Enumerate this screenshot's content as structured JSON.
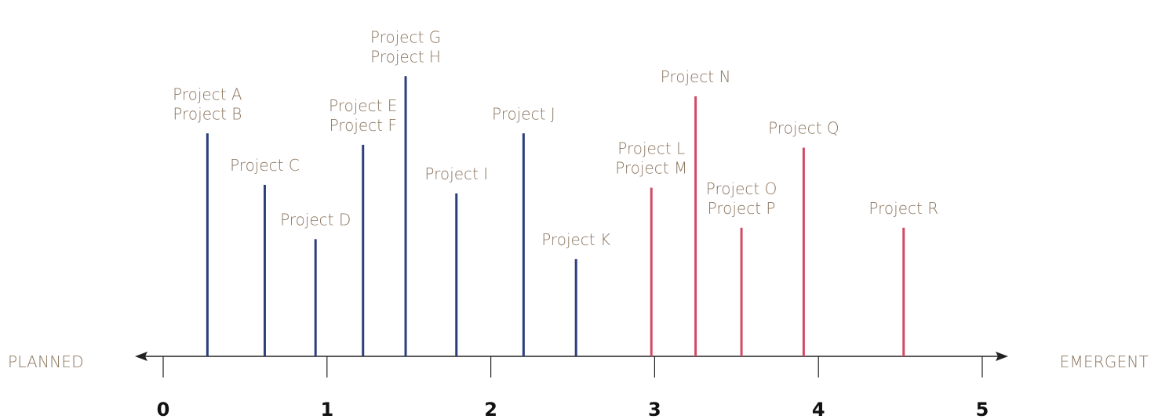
{
  "chart_data": {
    "type": "bar",
    "axis_left_label": "PLANNED",
    "axis_right_label": "EMERGENT",
    "xlim": [
      0,
      5
    ],
    "x_ticks": [
      "0",
      "1",
      "2",
      "3",
      "4",
      "5"
    ],
    "colors": {
      "planned": "#2d3e7c",
      "emergent": "#d24a66",
      "label": "#8b7560",
      "axis": "#222222"
    },
    "items": [
      {
        "x": 0.27,
        "height": 0.78,
        "labels": [
          "Project A",
          "Project B"
        ],
        "group": "planned"
      },
      {
        "x": 0.62,
        "height": 0.6,
        "labels": [
          "Project C"
        ],
        "group": "planned"
      },
      {
        "x": 0.93,
        "height": 0.41,
        "labels": [
          "Project D"
        ],
        "group": "planned"
      },
      {
        "x": 1.22,
        "height": 0.74,
        "labels": [
          "Project E",
          "Project F"
        ],
        "group": "planned"
      },
      {
        "x": 1.48,
        "height": 0.98,
        "labels": [
          "Project G",
          "Project H"
        ],
        "group": "planned"
      },
      {
        "x": 1.79,
        "height": 0.57,
        "labels": [
          "Project I"
        ],
        "group": "planned"
      },
      {
        "x": 2.2,
        "height": 0.78,
        "labels": [
          "Project J"
        ],
        "group": "planned"
      },
      {
        "x": 2.52,
        "height": 0.34,
        "labels": [
          "Project K"
        ],
        "group": "planned"
      },
      {
        "x": 2.98,
        "height": 0.59,
        "labels": [
          "Project L",
          "Project M"
        ],
        "group": "emergent"
      },
      {
        "x": 3.25,
        "height": 0.91,
        "labels": [
          "Project N"
        ],
        "group": "emergent"
      },
      {
        "x": 3.53,
        "height": 0.45,
        "labels": [
          "Project O",
          "Project P"
        ],
        "group": "emergent"
      },
      {
        "x": 3.91,
        "height": 0.73,
        "labels": [
          "Project Q"
        ],
        "group": "emergent"
      },
      {
        "x": 4.52,
        "height": 0.45,
        "labels": [
          "Project R"
        ],
        "group": "emergent"
      }
    ]
  }
}
